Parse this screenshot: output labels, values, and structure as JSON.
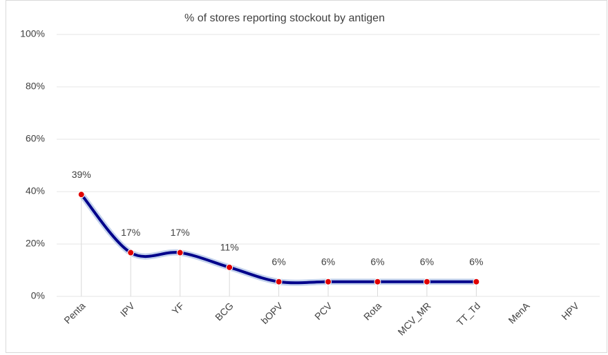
{
  "chart_data": {
    "type": "line",
    "title": "% of stores reporting stockout by antigen",
    "categories": [
      "Penta",
      "IPV",
      "YF",
      "BCG",
      "bOPV",
      "PCV",
      "Rota",
      "MCV_MR",
      "TT_Td",
      "MenA",
      "HPV"
    ],
    "series": [
      {
        "name": "% of stores reporting stockout",
        "color": "#00008b",
        "values": [
          38.9,
          16.7,
          16.7,
          11.1,
          5.6,
          5.6,
          5.6,
          5.6,
          5.6,
          null,
          null
        ],
        "value_labels": [
          "39%",
          "17%",
          "17%",
          "11%",
          "6%",
          "6%",
          "6%",
          "6%",
          "6%",
          null,
          null
        ]
      }
    ],
    "marker_color": "#e00000",
    "ylim": [
      0,
      100
    ],
    "yticks": [
      {
        "value": 0,
        "label": "0%"
      },
      {
        "value": 20,
        "label": "20%"
      },
      {
        "value": 40,
        "label": "40%"
      },
      {
        "value": 60,
        "label": "60%"
      },
      {
        "value": 80,
        "label": "80%"
      },
      {
        "value": 100,
        "label": "100%"
      }
    ],
    "grid": true,
    "smooth": true
  }
}
